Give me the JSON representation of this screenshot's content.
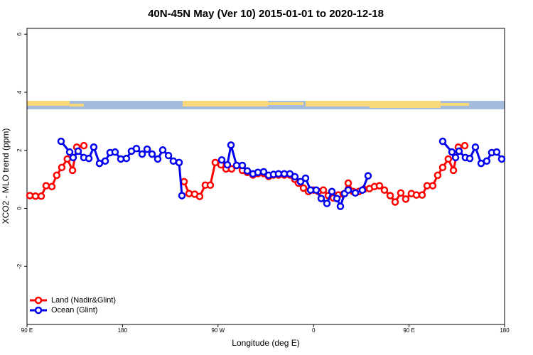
{
  "chart_data": {
    "type": "line",
    "title": "40N-45N May (Ver 10)   2015-01-01 to 2020-12-18",
    "x_label": "Longitude (deg E)",
    "y_label": "XCO2 - MLO trend (ppm)",
    "xlim": [
      90,
      540
    ],
    "ylim": [
      -4,
      6.2
    ],
    "xticks": [
      {
        "value": 90,
        "label": "90 E"
      },
      180,
      {
        "value": 270,
        "label": "90 W"
      },
      {
        "value": 360,
        "label": "0"
      },
      {
        "value": 450,
        "label": "90 E"
      },
      {
        "value": 540,
        "label": "180"
      }
    ],
    "yticks": [
      -2,
      0,
      2,
      4,
      6
    ],
    "legend": "bottom-left",
    "series": [
      {
        "name": "Land (Nadir&Glint)",
        "color": "#ff0000",
        "x": [
          92.7,
          98,
          103.4,
          108,
          113.4,
          118,
          122.8,
          128,
          132.9,
          136.9,
          143.6,
          190,
          238,
          242.7,
          248,
          252.7,
          258,
          262.7,
          267.4,
          272.8,
          277.5,
          282.8,
          287.5,
          292.9,
          297.6,
          302.9,
          307.6,
          313,
          317.7,
          322.3,
          327,
          332.4,
          337.7,
          342.4,
          345.8,
          350.5,
          355.2,
          360,
          364.5,
          369.2,
          373.9,
          378.6,
          383.3,
          388,
          392.7,
          397.3,
          402.7,
          407.4,
          412.7,
          417.4,
          422.1,
          426.8,
          432.2,
          436.9,
          442.2,
          446.9,
          452.2,
          456.9,
          462.3,
          467,
          472.3,
          477,
          481.7,
          487,
          491.8,
          496.4,
          502.5
        ],
        "values": [
          0.44,
          0.42,
          0.42,
          0.78,
          0.75,
          1.14,
          1.41,
          1.7,
          1.31,
          2.11,
          2.16,
          null,
          0.92,
          0.51,
          0.49,
          0.41,
          0.8,
          0.8,
          1.58,
          1.5,
          1.36,
          1.36,
          1.48,
          1.31,
          1.24,
          1.15,
          1.2,
          1.2,
          1.1,
          1.15,
          1.15,
          1.15,
          1.15,
          1.0,
          0.87,
          0.7,
          0.58,
          0.63,
          0.58,
          0.63,
          0.44,
          0.36,
          0.46,
          0.49,
          0.87,
          0.58,
          0.58,
          0.66,
          0.68,
          0.75,
          0.78,
          0.63,
          0.44,
          0.22,
          0.53,
          0.32,
          0.51,
          0.46,
          0.46,
          0.78,
          0.78,
          1.14,
          1.41,
          1.7,
          1.31,
          2.11,
          2.16
        ]
      },
      {
        "name": "Ocean (Glint)",
        "color": "#0000ee",
        "x": [
          122.1,
          130.2,
          133.5,
          138.2,
          143.6,
          148.3,
          152.9,
          158.3,
          163.7,
          168.3,
          173,
          178.4,
          183.7,
          188.4,
          193.1,
          198.5,
          203.2,
          207.8,
          213.2,
          217.9,
          223.3,
          227.9,
          233.3,
          236,
          255,
          273.5,
          278.8,
          282.2,
          287.5,
          292.9,
          297.6,
          302.9,
          307.6,
          313,
          317.7,
          322.3,
          327,
          332.4,
          337.7,
          342.4,
          347.8,
          352.5,
          357.2,
          362.5,
          367.2,
          372.6,
          377.3,
          382,
          385.3,
          389.3,
          392.7,
          399.4,
          406,
          411.4,
          450,
          481.7,
          490.4,
          493.8,
          497.1,
          503.1,
          507.2,
          512.5,
          517.9,
          523.2,
          527.9,
          532.6,
          537.3
        ],
        "values": [
          2.31,
          1.94,
          1.75,
          1.97,
          1.75,
          1.72,
          2.11,
          1.55,
          1.63,
          1.92,
          1.94,
          1.7,
          1.72,
          1.97,
          2.06,
          1.87,
          2.04,
          1.87,
          1.7,
          2.01,
          1.82,
          1.63,
          1.58,
          0.44,
          null,
          1.67,
          1.5,
          2.18,
          1.48,
          1.48,
          1.29,
          1.19,
          1.24,
          1.26,
          1.14,
          1.17,
          1.19,
          1.19,
          1.19,
          1.09,
          0.92,
          1.04,
          0.63,
          0.63,
          0.34,
          0.17,
          0.58,
          0.34,
          0.07,
          0.51,
          0.63,
          0.53,
          0.63,
          1.12,
          null,
          2.31,
          1.94,
          1.75,
          1.97,
          1.75,
          1.72,
          2.11,
          1.55,
          1.63,
          1.92,
          1.94,
          1.7
        ]
      }
    ]
  }
}
